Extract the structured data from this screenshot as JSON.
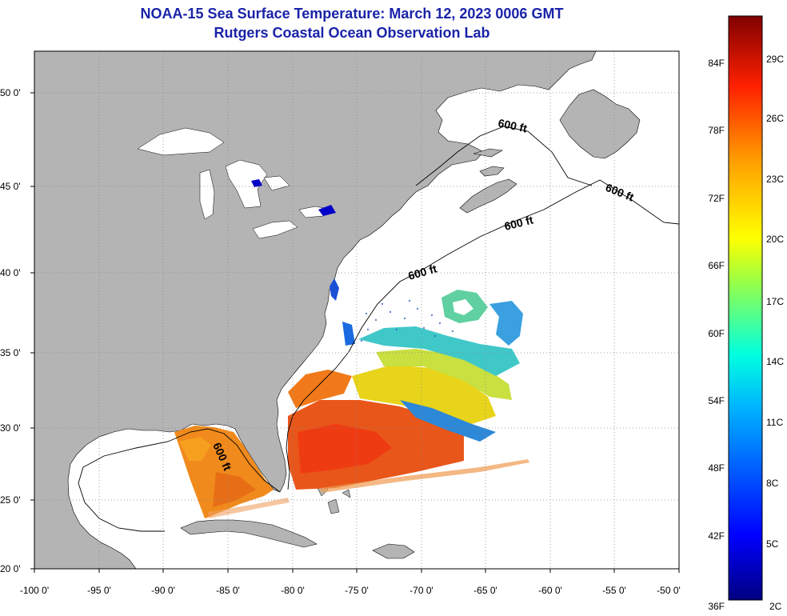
{
  "header": {
    "title_line1": "NOAA-15 Sea Surface Temperature:  March 12, 2023 0006 GMT",
    "title_line2": "Rutgers Coastal Ocean Observation Lab"
  },
  "map": {
    "lon_range": [
      -100,
      -50
    ],
    "lat_range": [
      20,
      52.5
    ],
    "x_ticks": [
      "-100 0'",
      "-95 0'",
      "-90 0'",
      "-85 0'",
      "-80 0'",
      "-75 0'",
      "-70 0'",
      "-65 0'",
      "-60 0'",
      "-55 0'",
      "-50 0'"
    ],
    "y_ticks": [
      "50 0'",
      "45 0'",
      "40 0'",
      "35 0'",
      "30 0'",
      "25 0'",
      "20 0'"
    ],
    "land_color": "#b4b4b4",
    "isobath_labels": [
      "600 ft",
      "600 ft",
      "600 ft",
      "600 ft",
      "600 ft"
    ]
  },
  "colorbar": {
    "min_label_f": "36F",
    "min_label_c": "2C",
    "f_labels": [
      "84F",
      "78F",
      "72F",
      "66F",
      "60F",
      "54F",
      "48F",
      "42F"
    ],
    "c_labels": [
      "29C",
      "26C",
      "23C",
      "20C",
      "17C",
      "14C",
      "11C",
      "8C",
      "5C"
    ],
    "colors": [
      "#00007f",
      "#0000ff",
      "#007fff",
      "#00ffff",
      "#7fff7f",
      "#ffff00",
      "#ff7f00",
      "#ff0000",
      "#7f0000"
    ]
  }
}
